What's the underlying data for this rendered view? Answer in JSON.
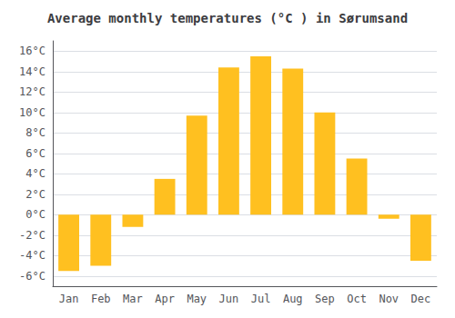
{
  "chart_data": {
    "type": "bar",
    "title": "Average monthly temperatures (°C ) in Sørumsand",
    "categories": [
      "Jan",
      "Feb",
      "Mar",
      "Apr",
      "May",
      "Jun",
      "Jul",
      "Aug",
      "Sep",
      "Oct",
      "Nov",
      "Dec"
    ],
    "values": [
      -5.5,
      -5.0,
      -1.2,
      3.5,
      9.7,
      14.4,
      15.5,
      14.3,
      10.0,
      5.5,
      -0.4,
      -4.5
    ],
    "color": "#FFC020",
    "ylim": [
      -7,
      17
    ],
    "yticks": [
      {
        "value": -6,
        "label": "-6°C"
      },
      {
        "value": -4,
        "label": "-4°C"
      },
      {
        "value": -2,
        "label": "-2°C"
      },
      {
        "value": 0,
        "label": "0°C"
      },
      {
        "value": 2,
        "label": "2°C"
      },
      {
        "value": 4,
        "label": "4°C"
      },
      {
        "value": 6,
        "label": "6°C"
      },
      {
        "value": 8,
        "label": "8°C"
      },
      {
        "value": 10,
        "label": "10°C"
      },
      {
        "value": 12,
        "label": "12°C"
      },
      {
        "value": 14,
        "label": "14°C"
      },
      {
        "value": 16,
        "label": "16°C"
      }
    ],
    "grid": true
  }
}
